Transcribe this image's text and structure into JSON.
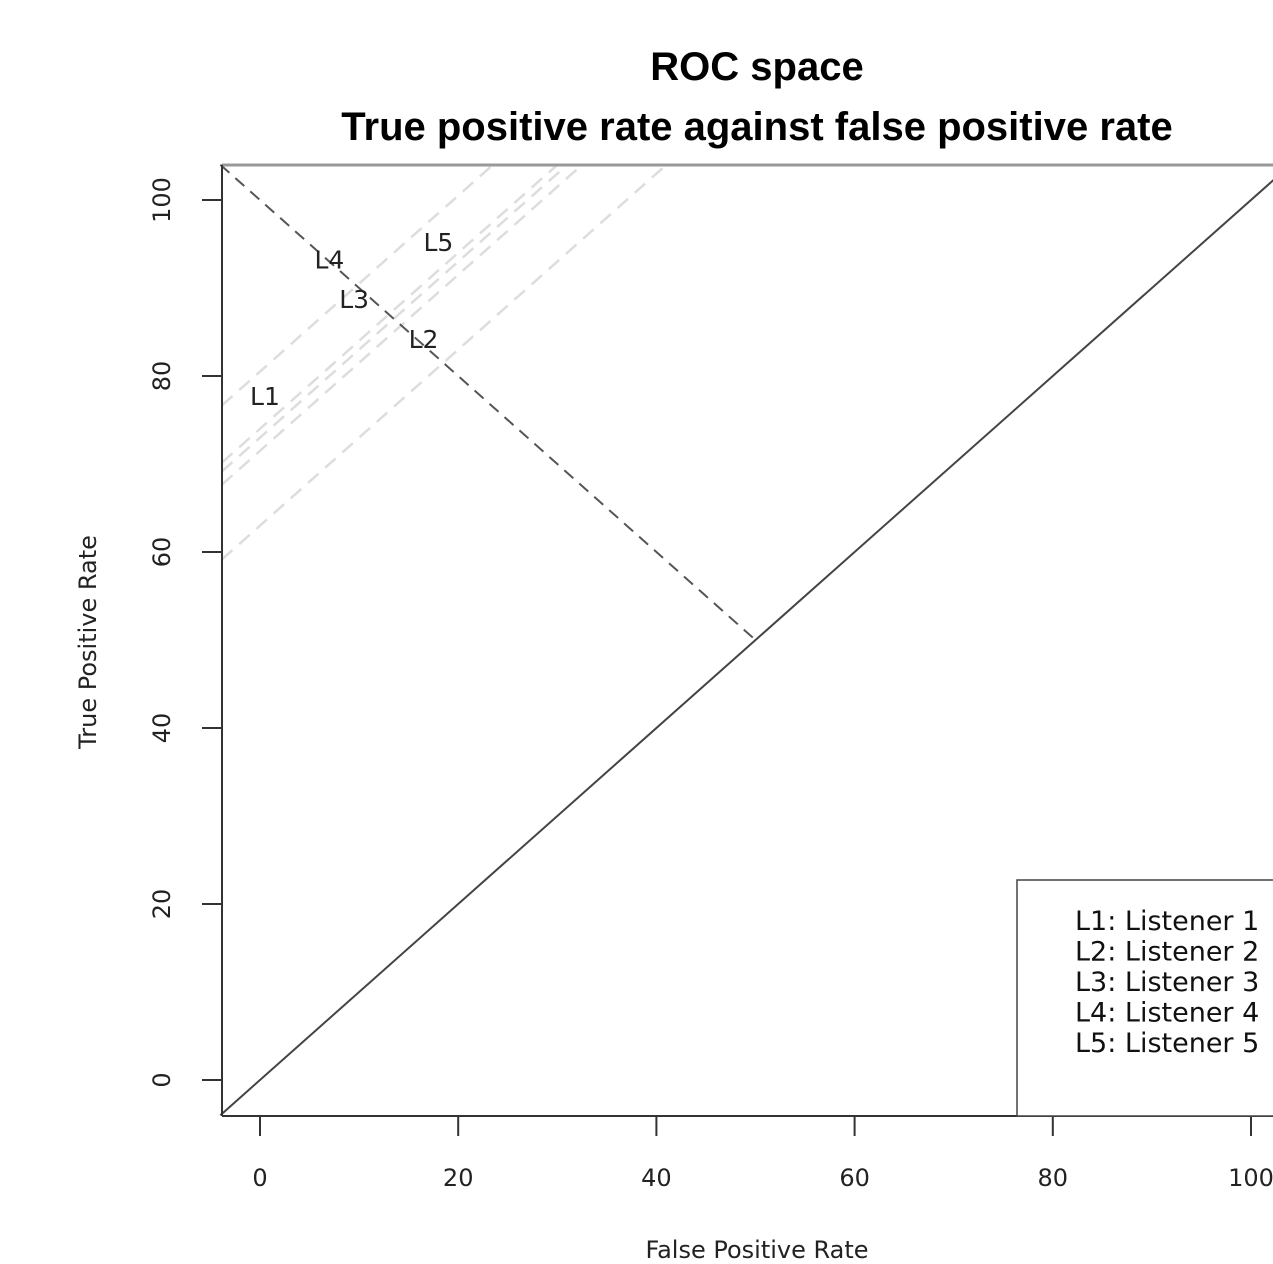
{
  "chart_data": {
    "type": "scatter",
    "title": "ROC space",
    "subtitle": "True positive rate against false positive rate",
    "xlabel": "False Positive Rate",
    "ylabel": "True Positive Rate",
    "xlim": [
      0,
      100
    ],
    "ylim": [
      0,
      100
    ],
    "x_ticks": [
      0,
      20,
      40,
      60,
      80,
      100
    ],
    "y_ticks": [
      0,
      20,
      40,
      60,
      80,
      100
    ],
    "grid": false,
    "points": [
      {
        "label": "L1",
        "x": 0.5,
        "y": 77.5
      },
      {
        "label": "L2",
        "x": 16.5,
        "y": 84
      },
      {
        "label": "L3",
        "x": 9.5,
        "y": 88.5
      },
      {
        "label": "L4",
        "x": 7.0,
        "y": 93
      },
      {
        "label": "L5",
        "x": 18.0,
        "y": 95
      }
    ],
    "reference_lines": [
      {
        "kind": "diagonal",
        "style": "solid",
        "from": [
          -4,
          -4
        ],
        "to": [
          104,
          104
        ]
      },
      {
        "kind": "minor-diagonal",
        "style": "dashed",
        "from": [
          -4,
          104
        ],
        "to": [
          50,
          50
        ]
      }
    ],
    "iso_lines": [
      {
        "style": "dashed",
        "intercept": 63
      },
      {
        "style": "dashed",
        "intercept": 71.5
      },
      {
        "style": "dashed",
        "intercept": 73
      },
      {
        "style": "dashed",
        "intercept": 74
      },
      {
        "style": "dashed",
        "intercept": 80.5
      }
    ],
    "legend": {
      "placement": "bottom-right",
      "entries": [
        "L1: Listener 1",
        "L2: Listener 2",
        "L3: Listener 3",
        "L4: Listener 4",
        "L5: Listener 5"
      ]
    },
    "colors": {
      "axis": "#333333",
      "diagonal": "#444444",
      "minor_diagonal": "#555555",
      "iso_line": "#dddddd",
      "text": "#222222"
    }
  }
}
